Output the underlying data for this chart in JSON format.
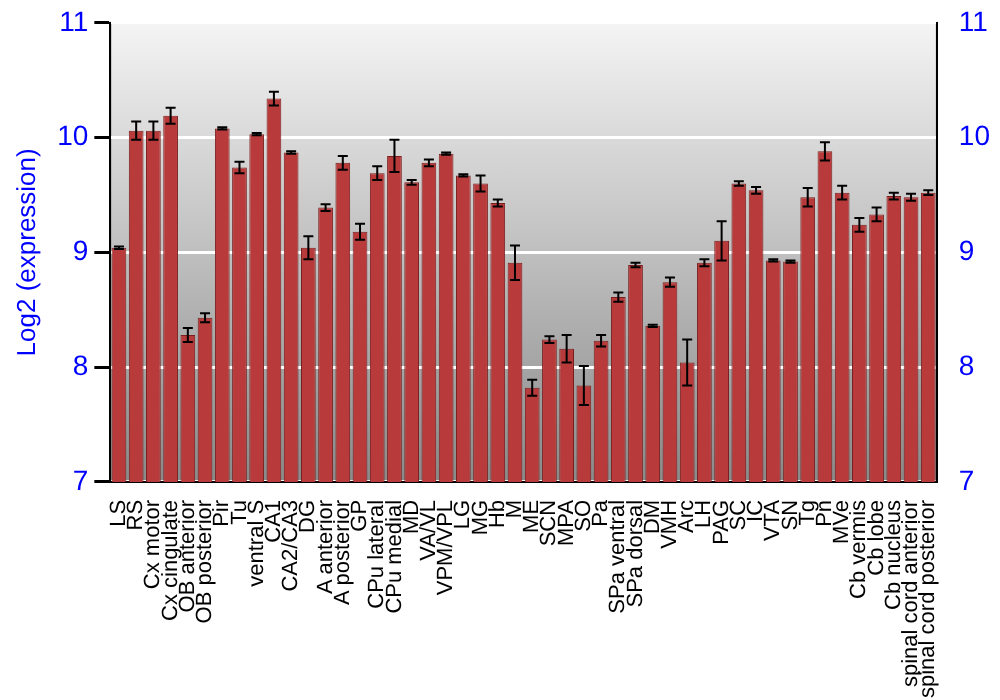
{
  "chart_data": {
    "type": "bar",
    "ylabel": "Log2 (expression)",
    "categories": [
      "LS",
      "RS",
      "Cx motor",
      "Cx cingulate",
      "OB anterior",
      "OB posterior",
      "Pir",
      "Tu",
      "ventral S",
      "CA1",
      "CA2/CA3",
      "DG",
      "A anterior",
      "A posterior",
      "GP",
      "CPu lateral",
      "CPu medial",
      "MD",
      "VA/VL",
      "VPM/VPL",
      "LG",
      "MG",
      "Hb",
      "M",
      "ME",
      "SCN",
      "MPA",
      "SO",
      "Pa",
      "SPa ventral",
      "SPa dorsal",
      "DM",
      "VMH",
      "Arc",
      "LH",
      "PAG",
      "SC",
      "IC",
      "VTA",
      "SN",
      "Tg",
      "Pn",
      "MVe",
      "Cb vermis",
      "Cb lobe",
      "Cb nucleus",
      "spinal cord anterior",
      "spinal cord posterior"
    ],
    "values": [
      9.04,
      10.06,
      10.06,
      10.19,
      8.28,
      8.43,
      10.08,
      9.74,
      10.03,
      10.34,
      9.87,
      9.04,
      9.39,
      9.78,
      9.18,
      9.69,
      9.84,
      9.61,
      9.78,
      9.86,
      9.67,
      9.6,
      9.43,
      8.91,
      7.82,
      8.24,
      8.16,
      7.84,
      8.23,
      8.61,
      8.89,
      8.36,
      8.74,
      8.04,
      8.91,
      9.1,
      9.6,
      9.54,
      8.93,
      8.92,
      9.48,
      9.88,
      9.52,
      9.24,
      9.33,
      9.49,
      9.48,
      9.52
    ],
    "errors": [
      0.01,
      0.08,
      0.08,
      0.07,
      0.06,
      0.04,
      0.01,
      0.05,
      0.01,
      0.06,
      0.01,
      0.1,
      0.03,
      0.06,
      0.07,
      0.06,
      0.14,
      0.02,
      0.03,
      0.01,
      0.01,
      0.07,
      0.03,
      0.15,
      0.07,
      0.03,
      0.12,
      0.17,
      0.05,
      0.04,
      0.02,
      0.01,
      0.04,
      0.2,
      0.03,
      0.17,
      0.02,
      0.03,
      0.01,
      0.01,
      0.08,
      0.08,
      0.06,
      0.06,
      0.06,
      0.03,
      0.03,
      0.02
    ],
    "color": "#b83a3a",
    "ylim": [
      7,
      11
    ],
    "yticks": [
      7,
      8,
      9,
      10,
      11
    ],
    "y2lim": [
      7,
      11
    ],
    "y2ticks": [
      7,
      8,
      9,
      10,
      11
    ],
    "grid": "y",
    "legend": false
  }
}
